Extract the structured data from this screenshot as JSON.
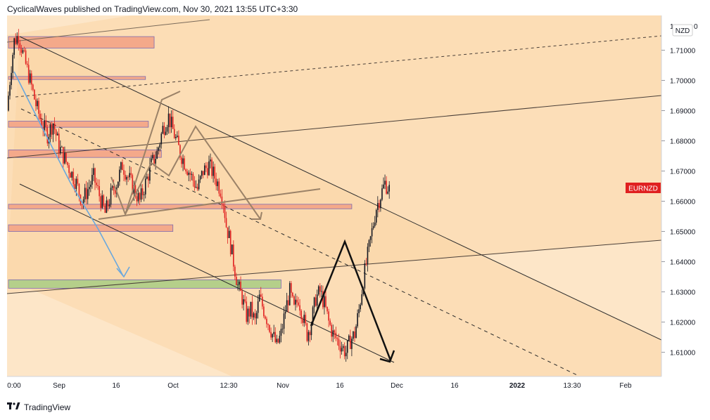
{
  "header": {
    "attribution": "CyclicalWaves published on TradingView.com, Nov 30, 2021 13:55 UTC+3:30"
  },
  "footer": {
    "brand": "TradingView",
    "logo_icon": "tradingview-logo-icon"
  },
  "chart_data": {
    "type": "candlestick",
    "symbol_label": "EURNZD",
    "currency_label": "NZD",
    "price_label_color": "#e02020",
    "y_axis": {
      "ylim": [
        1.602,
        1.7215
      ],
      "ticks": [
        "1.61000",
        "1.62000",
        "1.63000",
        "1.64000",
        "1.65000",
        "1.66000",
        "1.67000",
        "1.68000",
        "1.69000",
        "1.70000",
        "1.71000"
      ],
      "top_tick_fragment": [
        "1",
        "0"
      ]
    },
    "x_axis": {
      "ticks": [
        "0:00",
        "Sep",
        "16",
        "Oct",
        "12:30",
        "Nov",
        "16",
        "Dec",
        "16",
        "2022",
        "13:30",
        "Feb"
      ],
      "bold_ticks": [
        "2022"
      ]
    },
    "colors": {
      "up": "#131722",
      "down": "#e02020",
      "background": "#fde6c8"
    },
    "price_path": [
      [
        0,
        1.69
      ],
      [
        3,
        1.705
      ],
      [
        5,
        1.713
      ],
      [
        8,
        1.715
      ],
      [
        12,
        1.707
      ],
      [
        16,
        1.7
      ],
      [
        20,
        1.692
      ],
      [
        24,
        1.686
      ],
      [
        28,
        1.682
      ],
      [
        32,
        1.686
      ],
      [
        36,
        1.678
      ],
      [
        40,
        1.674
      ],
      [
        44,
        1.67
      ],
      [
        48,
        1.666
      ],
      [
        52,
        1.66
      ],
      [
        56,
        1.664
      ],
      [
        60,
        1.668
      ],
      [
        64,
        1.662
      ],
      [
        68,
        1.656
      ],
      [
        72,
        1.662
      ],
      [
        76,
        1.666
      ],
      [
        80,
        1.672
      ],
      [
        84,
        1.668
      ],
      [
        88,
        1.664
      ],
      [
        92,
        1.66
      ],
      [
        96,
        1.666
      ],
      [
        100,
        1.672
      ],
      [
        104,
        1.676
      ],
      [
        108,
        1.684
      ],
      [
        112,
        1.688
      ],
      [
        116,
        1.682
      ],
      [
        120,
        1.676
      ],
      [
        124,
        1.672
      ],
      [
        128,
        1.668
      ],
      [
        132,
        1.664
      ],
      [
        136,
        1.67
      ],
      [
        140,
        1.672
      ],
      [
        144,
        1.668
      ],
      [
        148,
        1.664
      ],
      [
        150,
        1.66
      ],
      [
        152,
        1.652
      ],
      [
        154,
        1.648
      ],
      [
        157,
        1.64
      ],
      [
        160,
        1.632
      ],
      [
        163,
        1.628
      ],
      [
        166,
        1.622
      ],
      [
        169,
        1.624
      ],
      [
        172,
        1.62
      ],
      [
        175,
        1.628
      ],
      [
        178,
        1.624
      ],
      [
        181,
        1.62
      ],
      [
        184,
        1.616
      ],
      [
        187,
        1.612
      ],
      [
        190,
        1.616
      ],
      [
        193,
        1.624
      ],
      [
        196,
        1.63
      ],
      [
        199,
        1.624
      ],
      [
        202,
        1.628
      ],
      [
        205,
        1.622
      ],
      [
        208,
        1.616
      ],
      [
        211,
        1.62
      ],
      [
        214,
        1.628
      ],
      [
        217,
        1.63
      ],
      [
        220,
        1.626
      ],
      [
        223,
        1.62
      ],
      [
        226,
        1.616
      ],
      [
        229,
        1.614
      ],
      [
        232,
        1.612
      ],
      [
        235,
        1.61
      ],
      [
        238,
        1.614
      ],
      [
        241,
        1.616
      ],
      [
        244,
        1.624
      ],
      [
        247,
        1.634
      ],
      [
        250,
        1.642
      ],
      [
        253,
        1.65
      ],
      [
        256,
        1.658
      ],
      [
        259,
        1.662
      ],
      [
        262,
        1.666
      ],
      [
        265,
        1.664
      ]
    ],
    "price_path_x_unit": "index of ten-candle step",
    "annotations": [
      {
        "kind": "horizontal_zone",
        "color": "#f4a98a",
        "y": [
          1.7107,
          1.7145
        ],
        "from": 0,
        "to": 101
      },
      {
        "kind": "horizontal_zone",
        "color": "#f4a98a",
        "y": [
          1.7003,
          1.7013
        ],
        "from": 0,
        "to": 95
      },
      {
        "kind": "horizontal_zone",
        "color": "#f4a98a",
        "y": [
          1.6845,
          1.6865
        ],
        "from": 0,
        "to": 97
      },
      {
        "kind": "horizontal_zone",
        "color": "#f4a98a",
        "y": [
          1.6745,
          1.677
        ],
        "from": 0,
        "to": 106
      },
      {
        "kind": "horizontal_zone",
        "color": "#f4a98a",
        "y": [
          1.6575,
          1.659
        ],
        "from": 0,
        "to": 238
      },
      {
        "kind": "horizontal_zone",
        "color": "#f4a98a",
        "y": [
          1.65,
          1.6522
        ],
        "from": 0,
        "to": 114
      },
      {
        "kind": "horizontal_zone",
        "color": "#b5cf8a",
        "y": [
          1.6312,
          1.634
        ],
        "from": 0,
        "to": 189
      }
    ]
  }
}
